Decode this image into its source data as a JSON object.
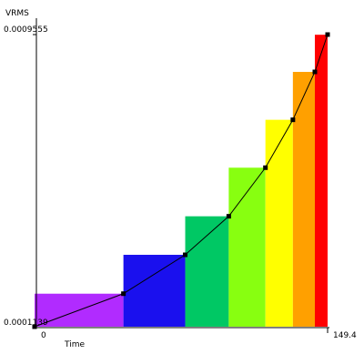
{
  "chart_data": {
    "type": "bar",
    "ylabel": "VRMS",
    "xlabel": "Time",
    "xlim": [
      0,
      149.4
    ],
    "ylim": [
      0.0001139,
      0.0009555
    ],
    "x_tick_labels": [
      "0",
      "149.4"
    ],
    "y_tick_labels": [
      "0.0001139",
      "0.0009555"
    ],
    "bars": [
      {
        "x_start": 0,
        "x_end": 45.3,
        "value": 0.000209,
        "color": "#b12bff"
      },
      {
        "x_start": 45.3,
        "x_end": 76.8,
        "value": 0.000321,
        "color": "#1a10ee"
      },
      {
        "x_start": 76.8,
        "x_end": 99.0,
        "value": 0.000432,
        "color": "#00c864"
      },
      {
        "x_start": 99.0,
        "x_end": 117.7,
        "value": 0.000572,
        "color": "#88ff10"
      },
      {
        "x_start": 117.7,
        "x_end": 131.7,
        "value": 0.00071,
        "color": "#ffff00"
      },
      {
        "x_start": 131.7,
        "x_end": 142.9,
        "value": 0.000848,
        "color": "#ffa000"
      },
      {
        "x_start": 142.9,
        "x_end": 149.4,
        "value": 0.000955,
        "color": "#ff0000"
      }
    ],
    "curve": {
      "x": [
        0,
        45.3,
        76.8,
        99.0,
        117.7,
        131.7,
        142.9,
        149.4
      ],
      "y": [
        0.0001139,
        0.000209,
        0.000321,
        0.000432,
        0.000572,
        0.00071,
        0.000848,
        0.0009555
      ]
    }
  }
}
